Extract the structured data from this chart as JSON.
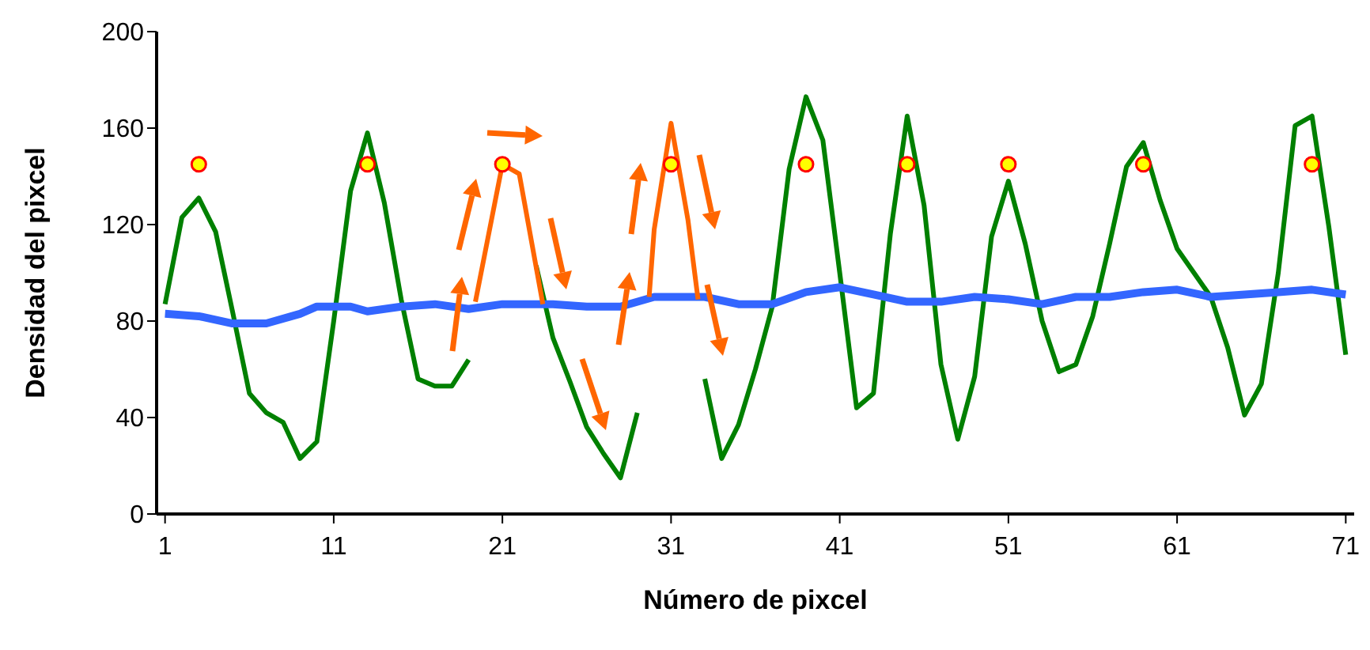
{
  "chart_data": {
    "type": "line",
    "xlabel": "Número de pixcel",
    "ylabel": "Densidad del pixcel",
    "x": [
      1,
      2,
      3,
      4,
      5,
      6,
      7,
      8,
      9,
      10,
      11,
      12,
      13,
      14,
      15,
      16,
      17,
      18,
      19,
      20,
      21,
      22,
      23,
      24,
      25,
      26,
      27,
      28,
      29,
      30,
      31,
      32,
      33,
      34,
      35,
      36,
      37,
      38,
      39,
      40,
      41,
      42,
      43,
      44,
      45,
      46,
      47,
      48,
      49,
      50,
      51,
      52,
      53,
      54,
      55,
      56,
      57,
      58,
      59,
      60,
      61,
      62,
      63,
      64,
      65,
      66,
      67,
      68,
      69,
      70,
      71
    ],
    "series": [
      {
        "color": "#008000",
        "values": [
          87,
          123,
          131,
          117,
          84,
          50,
          42,
          38,
          23,
          30,
          80,
          134,
          158,
          129,
          89,
          56,
          53,
          53,
          64,
          null,
          null,
          null,
          103,
          73,
          55,
          36,
          25,
          15,
          42,
          null,
          null,
          null,
          56,
          23,
          37,
          60,
          86,
          143,
          173,
          155,
          100,
          44,
          50,
          116,
          165,
          128,
          62,
          31,
          57,
          115,
          138,
          112,
          80,
          59,
          62,
          82,
          112,
          144,
          154,
          130,
          110,
          100,
          90,
          69,
          41,
          54,
          100,
          161,
          165,
          119,
          66
        ]
      },
      {
        "color": "#3366ff",
        "x": [
          1,
          3,
          5,
          7,
          9,
          10,
          12,
          13,
          15,
          17,
          19,
          21,
          23,
          24,
          26,
          28,
          30,
          33,
          35,
          37,
          39,
          41,
          43,
          45,
          47,
          49,
          51,
          53,
          55,
          57,
          59,
          61,
          63,
          65,
          67,
          69,
          71
        ],
        "values": [
          83,
          82,
          79,
          79,
          83,
          86,
          86,
          84,
          86,
          87,
          85,
          87,
          87,
          87,
          86,
          86,
          90,
          90,
          87,
          87,
          92,
          94,
          91,
          88,
          88,
          90,
          89,
          87,
          90,
          90,
          92,
          93,
          90,
          91,
          92,
          93,
          91
        ]
      },
      {
        "color": "#ff6600",
        "x": [
          19.4,
          21,
          22,
          23.4
        ],
        "values": [
          88,
          145,
          141,
          87
        ]
      },
      {
        "color": "#ff6600",
        "x": [
          29.7,
          30,
          31,
          32,
          32.6
        ],
        "values": [
          90,
          118,
          162,
          122,
          89
        ]
      },
      {
        "type": "scatter",
        "marker": "circle",
        "color": "#ffff00",
        "x": [
          3,
          13,
          21,
          31,
          39,
          45,
          51,
          59,
          69
        ],
        "values": [
          145,
          145,
          145,
          145,
          145,
          145,
          145,
          145,
          145
        ]
      }
    ],
    "xlim": [
      0.5,
      71.5
    ],
    "xticks": [
      1,
      11,
      21,
      31,
      41,
      51,
      61,
      71
    ],
    "ylim": [
      0,
      200
    ],
    "yticks": [
      0,
      40,
      80,
      120,
      160,
      200
    ],
    "grid": false,
    "legend": false,
    "marker": "none"
  }
}
